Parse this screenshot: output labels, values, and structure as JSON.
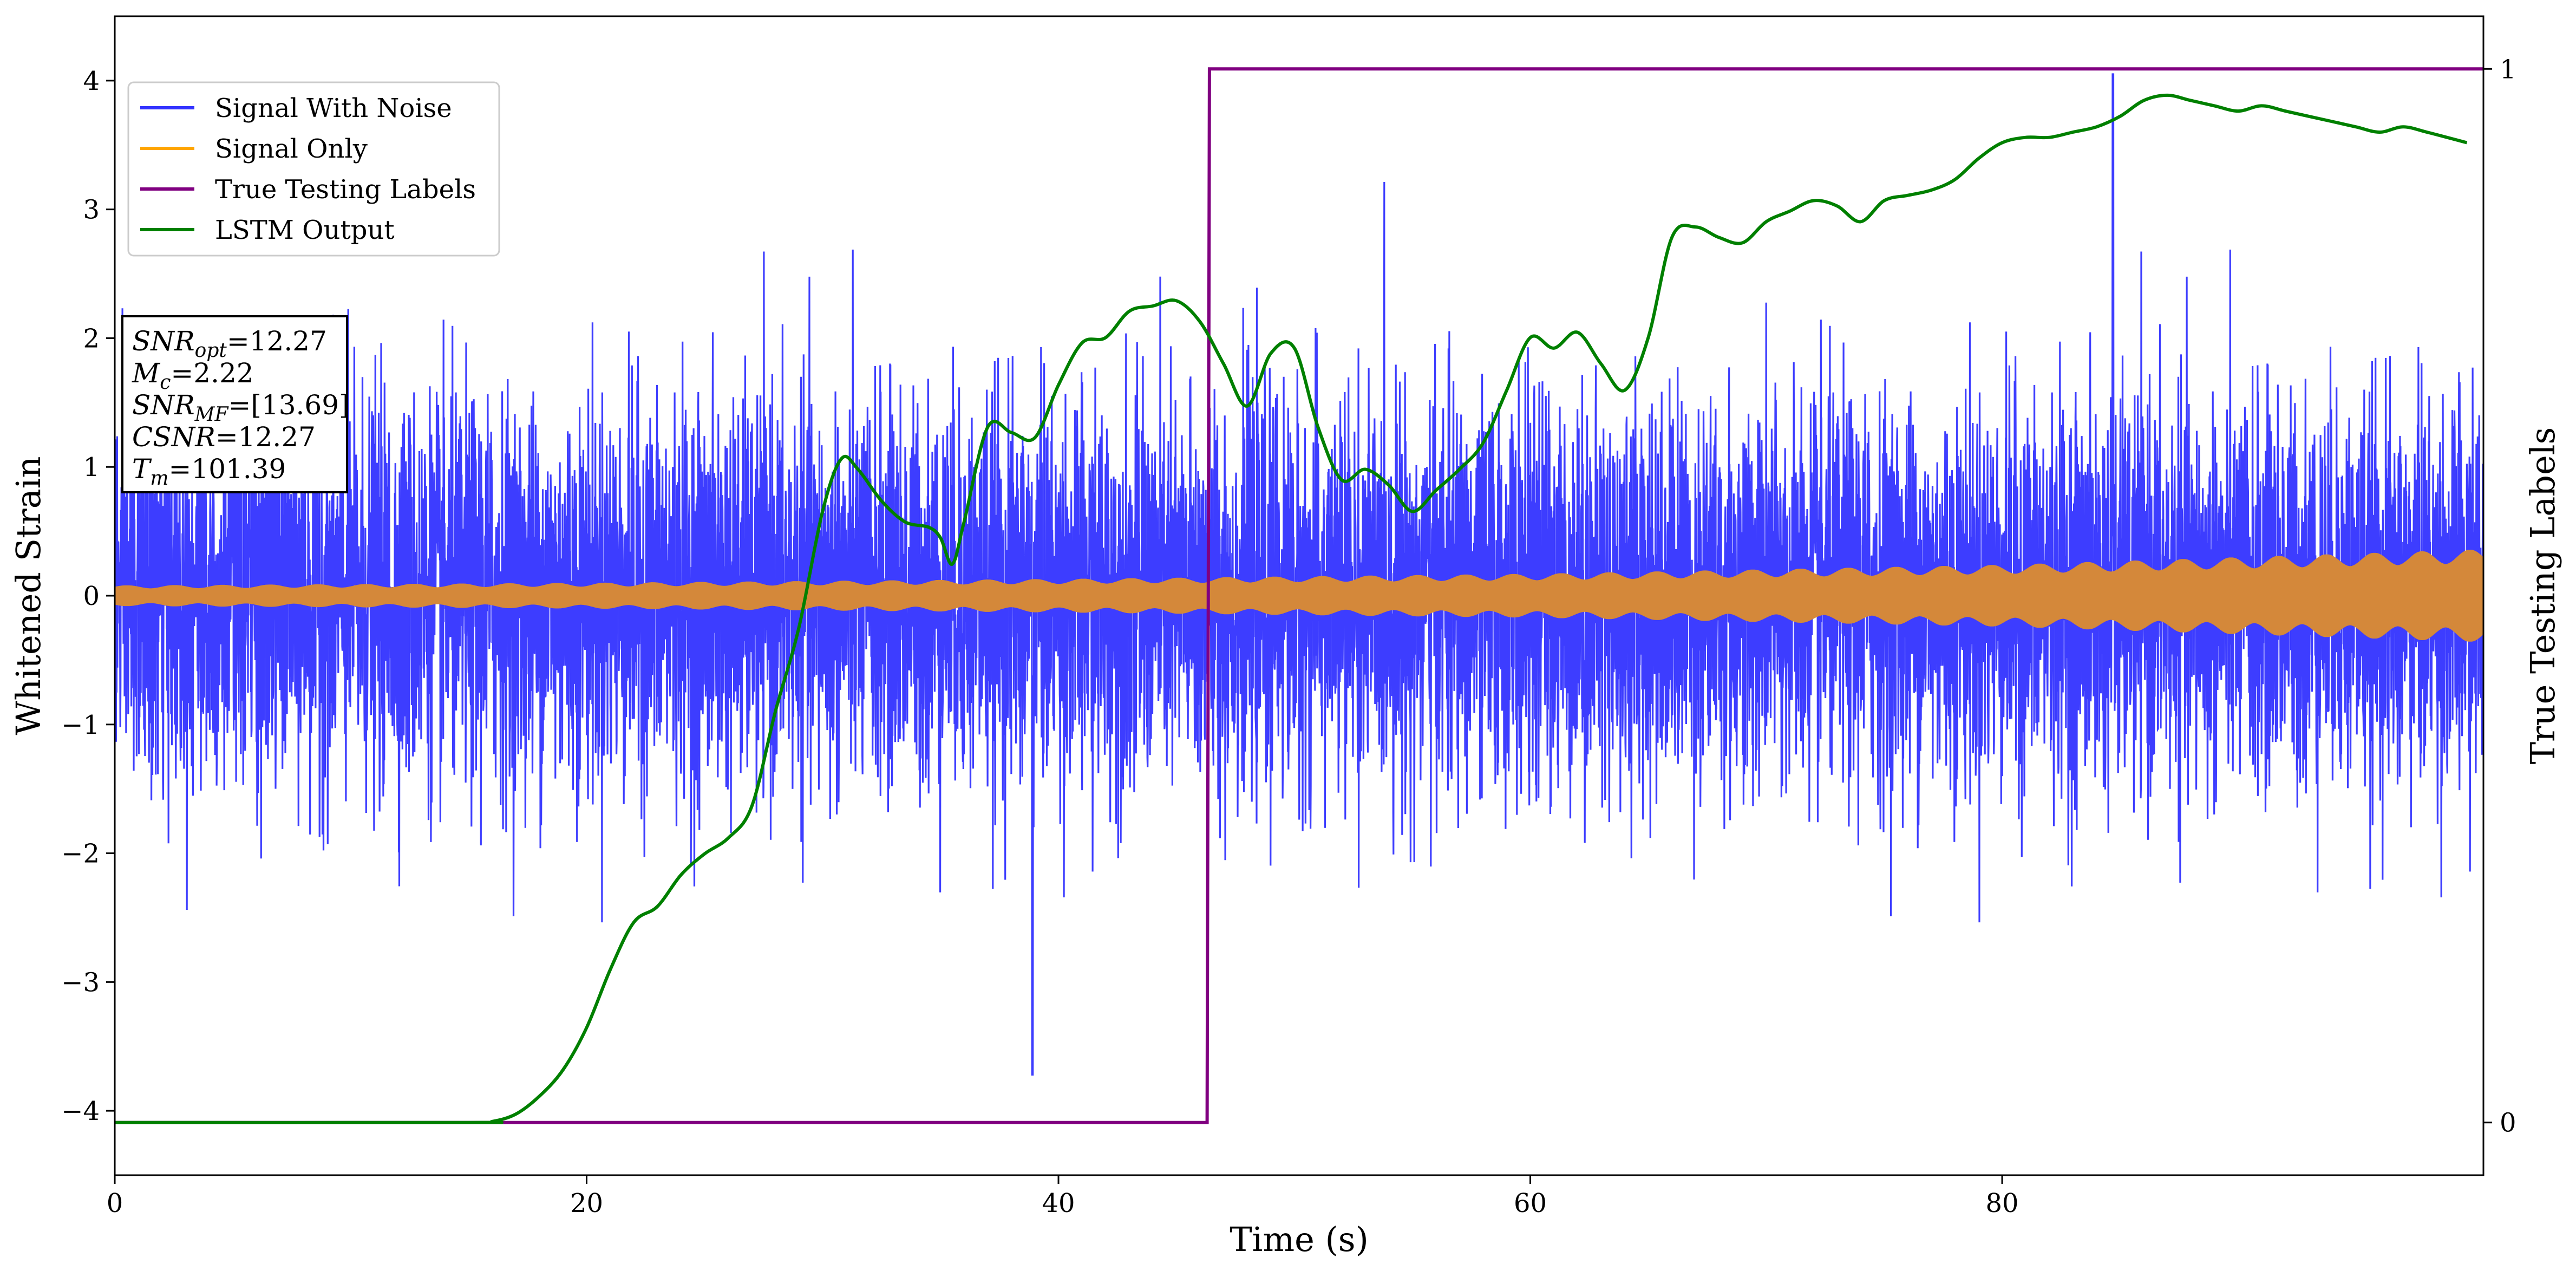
{
  "chart_data": {
    "type": "line",
    "title": "",
    "xlabel": "Time (s)",
    "ylabel": "Whitened Strain",
    "y2label": "True Testing Labels",
    "xlim": [
      0,
      100.4
    ],
    "ylim": [
      -4.5,
      4.5
    ],
    "y2lim": [
      -0.05,
      1.05
    ],
    "x_ticks": [
      0,
      20,
      40,
      60,
      80
    ],
    "x_tick_labels": [
      "0",
      "20",
      "40",
      "60",
      "80"
    ],
    "y_ticks": [
      -4,
      -3,
      -2,
      -1,
      0,
      1,
      2,
      3,
      4
    ],
    "y_tick_labels": [
      "−4",
      "−3",
      "−2",
      "−1",
      "0",
      "1",
      "2",
      "3",
      "4"
    ],
    "y2_ticks": [
      0,
      1
    ],
    "y2_tick_labels": [
      "0",
      "1"
    ],
    "grid": false,
    "legend_position": "top-left",
    "colors": {
      "signal_with_noise": "#3333ff",
      "signal_only": "#ffa500",
      "signal_overlap": "#d4883a",
      "true_labels": "#800080",
      "lstm_output": "#008000"
    },
    "series": [
      {
        "name": "Signal With Noise",
        "axis": "left",
        "description_values": {
          "noise_std": 0.75,
          "max_peak": 4.05,
          "min_trough": -3.72,
          "x_range": [
            0,
            100.4
          ]
        }
      },
      {
        "name": "Signal Only",
        "axis": "left",
        "envelope": {
          "x": [
            0,
            20,
            40,
            60,
            80,
            100.4
          ],
          "amplitude": [
            0.08,
            0.1,
            0.13,
            0.17,
            0.24,
            0.36
          ]
        }
      },
      {
        "name": "True Testing Labels",
        "axis": "right",
        "x": [
          0,
          46.3,
          46.4,
          100.4
        ],
        "y": [
          0,
          0,
          1,
          1
        ]
      },
      {
        "name": "LSTM Output",
        "axis": "right",
        "x": [
          0,
          15,
          16,
          17,
          18,
          19,
          20,
          21,
          22,
          23,
          24,
          25,
          26,
          27,
          28,
          29,
          30,
          30.8,
          31.5,
          32.5,
          33.5,
          34.5,
          35,
          35.5,
          36,
          37,
          38,
          39,
          40,
          41,
          42,
          43,
          44,
          45,
          46,
          47,
          48,
          49,
          50,
          51,
          52,
          53,
          54,
          55,
          56,
          57,
          58,
          59,
          60,
          61,
          62,
          63,
          64,
          65,
          66,
          67,
          68,
          69,
          70,
          71,
          72,
          73,
          74,
          75,
          76,
          77,
          78,
          79,
          80,
          81,
          82,
          83,
          84,
          85,
          86,
          87,
          88,
          89,
          90,
          91,
          92,
          93,
          94,
          95,
          96,
          97,
          98,
          99.7
        ],
        "y": [
          0,
          0,
          0.001,
          0.008,
          0.025,
          0.05,
          0.09,
          0.145,
          0.19,
          0.205,
          0.235,
          0.255,
          0.27,
          0.3,
          0.39,
          0.47,
          0.58,
          0.63,
          0.62,
          0.59,
          0.57,
          0.565,
          0.555,
          0.53,
          0.57,
          0.66,
          0.655,
          0.65,
          0.7,
          0.74,
          0.745,
          0.77,
          0.775,
          0.78,
          0.76,
          0.72,
          0.68,
          0.73,
          0.735,
          0.66,
          0.61,
          0.62,
          0.605,
          0.58,
          0.6,
          0.62,
          0.645,
          0.695,
          0.745,
          0.735,
          0.75,
          0.72,
          0.695,
          0.745,
          0.84,
          0.85,
          0.84,
          0.835,
          0.855,
          0.865,
          0.875,
          0.87,
          0.855,
          0.875,
          0.88,
          0.885,
          0.895,
          0.915,
          0.93,
          0.935,
          0.935,
          0.94,
          0.945,
          0.955,
          0.97,
          0.975,
          0.97,
          0.965,
          0.96,
          0.965,
          0.96,
          0.955,
          0.95,
          0.945,
          0.94,
          0.945,
          0.94,
          0.93
        ]
      }
    ],
    "annotation_lines": [
      {
        "var": "SNR",
        "sub": "opt",
        "value": "=12.27"
      },
      {
        "var": "M",
        "sub": "c",
        "value": "=2.22"
      },
      {
        "var": "SNR",
        "sub": "MF",
        "value": "=[13.69]"
      },
      {
        "var": "CSNR",
        "sub": "",
        "value": "=12.27"
      },
      {
        "var": "T",
        "sub": "m",
        "value": "=101.39"
      }
    ]
  }
}
